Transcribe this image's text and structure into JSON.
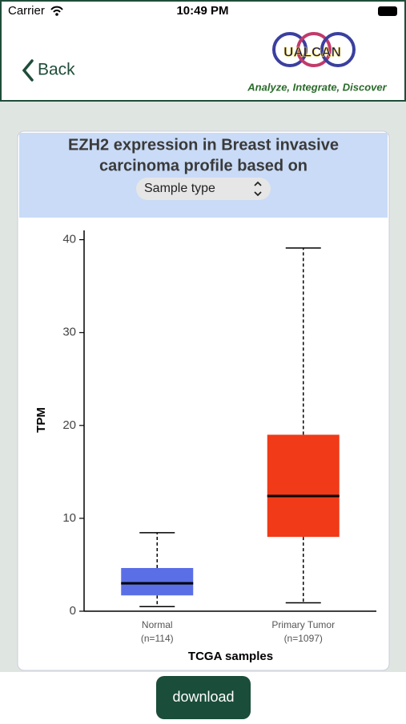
{
  "status_bar": {
    "carrier": "Carrier",
    "time": "10:49 PM"
  },
  "nav": {
    "back": "Back",
    "logo": "UALCAN",
    "tagline": "Analyze, Integrate, Discover"
  },
  "chart_data": {
    "type": "box",
    "title": [
      "EZH2 expression in Breast invasive",
      "carcinoma profile based on"
    ],
    "selector": "Sample type",
    "y_label": "TPM",
    "x_label": "TCGA samples",
    "ylim": [
      0,
      41
    ],
    "yticks": [
      0,
      10,
      20,
      30,
      40
    ],
    "boxes": [
      {
        "name": "Normal",
        "note": "(n=114)",
        "color": "#5a6fe6",
        "low": 0.5,
        "q1": 1.7,
        "median": 3.0,
        "q3": 4.65,
        "high": 8.45
      },
      {
        "name": "Primary Tumor",
        "note": "(n=1097)",
        "color": "#f03a18",
        "low": 0.9,
        "q1": 8.0,
        "median": 12.4,
        "q3": 19.0,
        "high": 39.1
      }
    ]
  },
  "download": "download"
}
